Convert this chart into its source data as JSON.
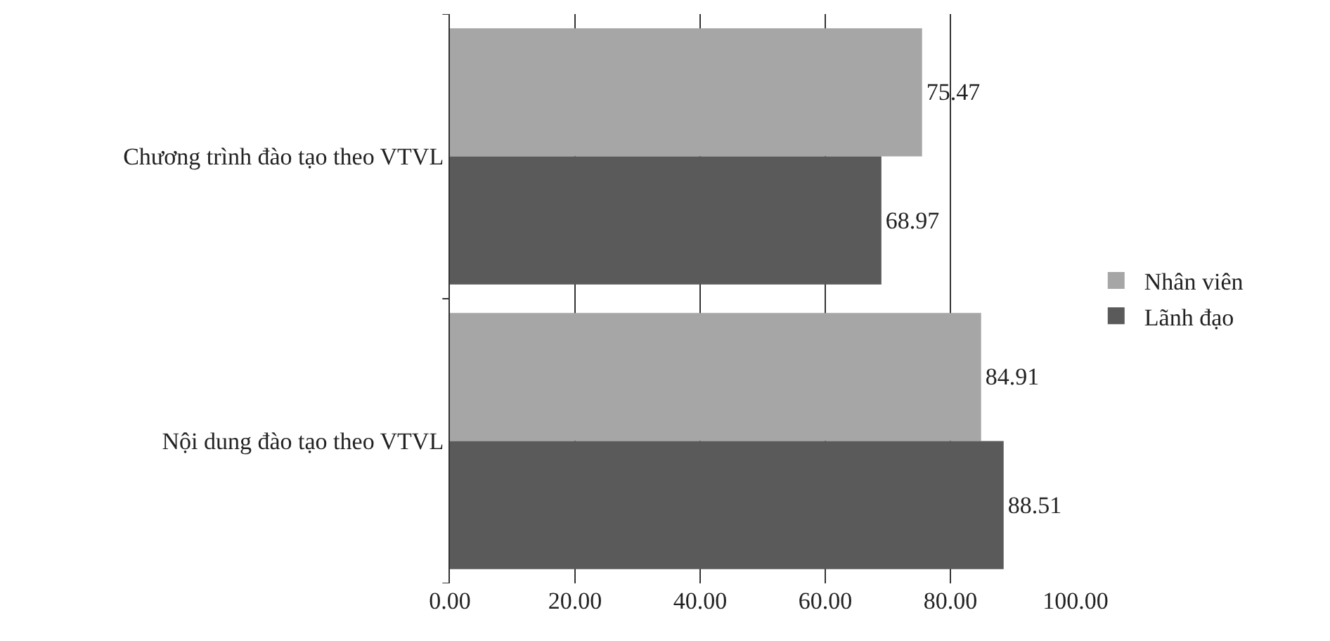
{
  "chart_data": {
    "type": "bar",
    "orientation": "horizontal",
    "categories": [
      "Chương trình đào tạo theo VTVL",
      "Nội dung đào tạo theo VTVL"
    ],
    "series": [
      {
        "name": "Nhân viên",
        "color": "#a6a6a6",
        "values": [
          75.47,
          84.91
        ]
      },
      {
        "name": "Lãnh đạo",
        "color": "#5a5a5a",
        "values": [
          68.97,
          88.51
        ]
      }
    ],
    "xlim": [
      0,
      100
    ],
    "xticks": [
      {
        "value": 0,
        "label": "0.00"
      },
      {
        "value": 20,
        "label": "20.00"
      },
      {
        "value": 40,
        "label": "40.00"
      },
      {
        "value": 60,
        "label": "60.00"
      },
      {
        "value": 80,
        "label": "80.00"
      },
      {
        "value": 100,
        "label": "100.00"
      }
    ],
    "data_labels": true,
    "grid": "x",
    "legend": "right"
  }
}
